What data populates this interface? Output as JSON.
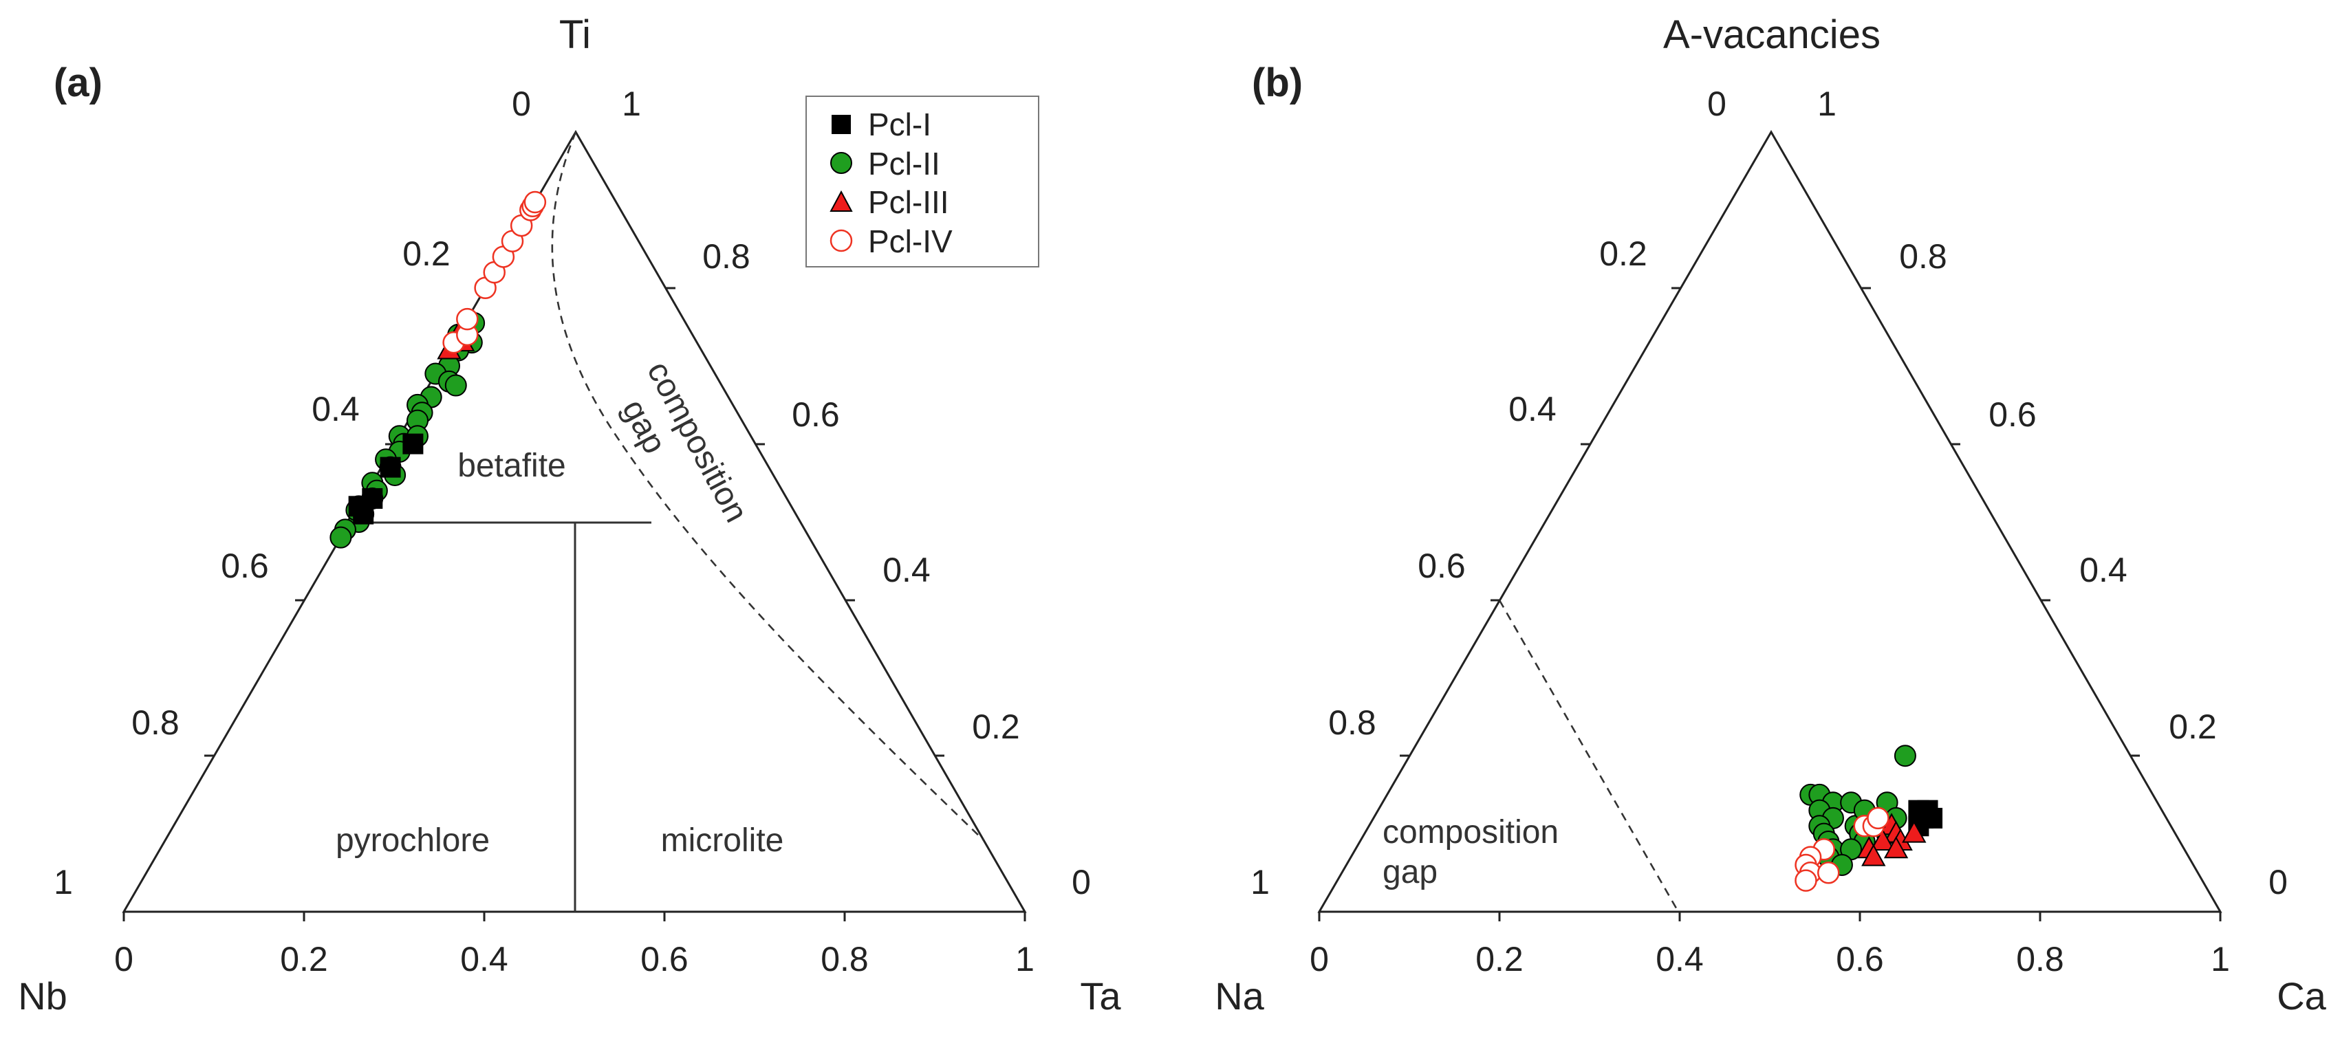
{
  "chart_data": [
    {
      "type": "scatter",
      "panel_label": "(a)",
      "diagram": "ternary",
      "apex_labels": {
        "top": "Ti",
        "left": "Nb",
        "right": "Ta"
      },
      "top_corner_labels": [
        "0",
        "1"
      ],
      "left_axis_ticks": [
        "0.2",
        "0.4",
        "0.6",
        "0.8",
        "1"
      ],
      "right_axis_ticks": [
        "0.8",
        "0.6",
        "0.4",
        "0.2",
        "0"
      ],
      "bottom_axis_ticks": [
        "0",
        "0.2",
        "0.4",
        "0.6",
        "0.8",
        "1"
      ],
      "regions": [
        "betafite",
        "pyrochlore",
        "microlite",
        "composition gap"
      ],
      "legend": {
        "placement": "top-right",
        "entries": [
          {
            "name": "Pcl-I",
            "marker": "square",
            "fill": "#000000",
            "stroke": "#000000"
          },
          {
            "name": "Pcl-II",
            "marker": "circle",
            "fill": "#1f9e1f",
            "stroke": "#000000"
          },
          {
            "name": "Pcl-III",
            "marker": "triangle",
            "fill": "#ee1c1c",
            "stroke": "#000000"
          },
          {
            "name": "Pcl-IV",
            "marker": "circle",
            "fill": "#ffffff",
            "stroke": "#ee3322"
          }
        ]
      },
      "series": [
        {
          "name": "Pcl-I",
          "points": [
            {
              "ti": 0.57,
              "ta": 0.01
            },
            {
              "ti": 0.53,
              "ta": 0.01
            },
            {
              "ti": 0.51,
              "ta": 0.01
            },
            {
              "ti": 0.6,
              "ta": 0.02
            },
            {
              "ti": 0.52,
              "ta": 0.0
            }
          ]
        },
        {
          "name": "Pcl-II",
          "points": [
            {
              "ti": 0.755,
              "ta": 0.01
            },
            {
              "ti": 0.74,
              "ta": 0.0
            },
            {
              "ti": 0.73,
              "ta": 0.02
            },
            {
              "ti": 0.72,
              "ta": 0.01
            },
            {
              "ti": 0.7,
              "ta": 0.01
            },
            {
              "ti": 0.69,
              "ta": 0.0
            },
            {
              "ti": 0.68,
              "ta": 0.02
            },
            {
              "ti": 0.66,
              "ta": 0.01
            },
            {
              "ti": 0.65,
              "ta": 0.0
            },
            {
              "ti": 0.64,
              "ta": 0.01
            },
            {
              "ti": 0.63,
              "ta": 0.01
            },
            {
              "ti": 0.61,
              "ta": 0.0
            },
            {
              "ti": 0.6,
              "ta": 0.01
            },
            {
              "ti": 0.59,
              "ta": 0.01
            },
            {
              "ti": 0.58,
              "ta": 0.0
            },
            {
              "ti": 0.57,
              "ta": 0.01
            },
            {
              "ti": 0.56,
              "ta": 0.02
            },
            {
              "ti": 0.55,
              "ta": 0.0
            },
            {
              "ti": 0.54,
              "ta": 0.01
            },
            {
              "ti": 0.53,
              "ta": 0.01
            },
            {
              "ti": 0.52,
              "ta": 0.0
            },
            {
              "ti": 0.51,
              "ta": 0.01
            },
            {
              "ti": 0.5,
              "ta": 0.01
            },
            {
              "ti": 0.49,
              "ta": 0.0
            },
            {
              "ti": 0.48,
              "ta": 0.0
            },
            {
              "ti": 0.515,
              "ta": 0.0
            },
            {
              "ti": 0.675,
              "ta": 0.03
            },
            {
              "ti": 0.61,
              "ta": 0.02
            }
          ]
        },
        {
          "name": "Pcl-III",
          "points": [
            {
              "ti": 0.745,
              "ta": 0.0
            },
            {
              "ti": 0.73,
              "ta": 0.01
            },
            {
              "ti": 0.72,
              "ta": 0.0
            }
          ]
        },
        {
          "name": "Pcl-IV",
          "points": [
            {
              "ti": 0.73,
              "ta": 0.0
            },
            {
              "ti": 0.74,
              "ta": 0.01
            },
            {
              "ti": 0.76,
              "ta": 0.0
            },
            {
              "ti": 0.8,
              "ta": 0.0
            },
            {
              "ti": 0.82,
              "ta": 0.0
            },
            {
              "ti": 0.84,
              "ta": 0.0
            },
            {
              "ti": 0.86,
              "ta": 0.0
            },
            {
              "ti": 0.88,
              "ta": 0.0
            },
            {
              "ti": 0.9,
              "ta": 0.0
            },
            {
              "ti": 0.905,
              "ta": 0.0
            },
            {
              "ti": 0.91,
              "ta": 0.0
            }
          ]
        }
      ]
    },
    {
      "type": "scatter",
      "panel_label": "(b)",
      "diagram": "ternary",
      "apex_labels": {
        "top": "A-vacancies",
        "left": "Na",
        "right": "Ca"
      },
      "top_corner_labels": [
        "0",
        "1"
      ],
      "left_axis_ticks": [
        "0.2",
        "0.4",
        "0.6",
        "0.8",
        "1"
      ],
      "right_axis_ticks": [
        "0.8",
        "0.6",
        "0.4",
        "0.2",
        "0"
      ],
      "bottom_axis_ticks": [
        "0",
        "0.2",
        "0.4",
        "0.6",
        "0.8",
        "1"
      ],
      "regions": [
        "composition gap"
      ],
      "series": [
        {
          "name": "Pcl-I",
          "points": [
            {
              "vac": 0.13,
              "ca": 0.6
            },
            {
              "vac": 0.12,
              "ca": 0.61
            },
            {
              "vac": 0.13,
              "ca": 0.61
            },
            {
              "vac": 0.12,
              "ca": 0.62
            },
            {
              "vac": 0.11,
              "ca": 0.61
            }
          ]
        },
        {
          "name": "Pcl-II",
          "points": [
            {
              "vac": 0.2,
              "ca": 0.55
            },
            {
              "vac": 0.15,
              "ca": 0.47
            },
            {
              "vac": 0.15,
              "ca": 0.48
            },
            {
              "vac": 0.14,
              "ca": 0.5
            },
            {
              "vac": 0.14,
              "ca": 0.52
            },
            {
              "vac": 0.13,
              "ca": 0.49
            },
            {
              "vac": 0.12,
              "ca": 0.51
            },
            {
              "vac": 0.11,
              "ca": 0.5
            },
            {
              "vac": 0.1,
              "ca": 0.51
            },
            {
              "vac": 0.09,
              "ca": 0.52
            },
            {
              "vac": 0.08,
              "ca": 0.53
            },
            {
              "vac": 0.07,
              "ca": 0.53
            },
            {
              "vac": 0.11,
              "ca": 0.54
            },
            {
              "vac": 0.1,
              "ca": 0.55
            },
            {
              "vac": 0.09,
              "ca": 0.56
            },
            {
              "vac": 0.12,
              "ca": 0.56
            },
            {
              "vac": 0.13,
              "ca": 0.54
            },
            {
              "vac": 0.14,
              "ca": 0.56
            },
            {
              "vac": 0.08,
              "ca": 0.55
            },
            {
              "vac": 0.06,
              "ca": 0.55
            },
            {
              "vac": 0.12,
              "ca": 0.58
            },
            {
              "vac": 0.1,
              "ca": 0.58
            }
          ]
        },
        {
          "name": "Pcl-III",
          "points": [
            {
              "vac": 0.11,
              "ca": 0.58
            },
            {
              "vac": 0.1,
              "ca": 0.59
            },
            {
              "vac": 0.09,
              "ca": 0.58
            },
            {
              "vac": 0.08,
              "ca": 0.57
            },
            {
              "vac": 0.07,
              "ca": 0.58
            },
            {
              "vac": 0.09,
              "ca": 0.6
            },
            {
              "vac": 0.1,
              "ca": 0.61
            },
            {
              "vac": 0.08,
              "ca": 0.6
            }
          ]
        },
        {
          "name": "Pcl-IV",
          "points": [
            {
              "vac": 0.11,
              "ca": 0.55
            },
            {
              "vac": 0.11,
              "ca": 0.56
            },
            {
              "vac": 0.12,
              "ca": 0.56
            },
            {
              "vac": 0.08,
              "ca": 0.52
            },
            {
              "vac": 0.07,
              "ca": 0.51
            },
            {
              "vac": 0.06,
              "ca": 0.51
            },
            {
              "vac": 0.05,
              "ca": 0.52
            },
            {
              "vac": 0.04,
              "ca": 0.52
            },
            {
              "vac": 0.05,
              "ca": 0.54
            }
          ]
        }
      ]
    }
  ]
}
